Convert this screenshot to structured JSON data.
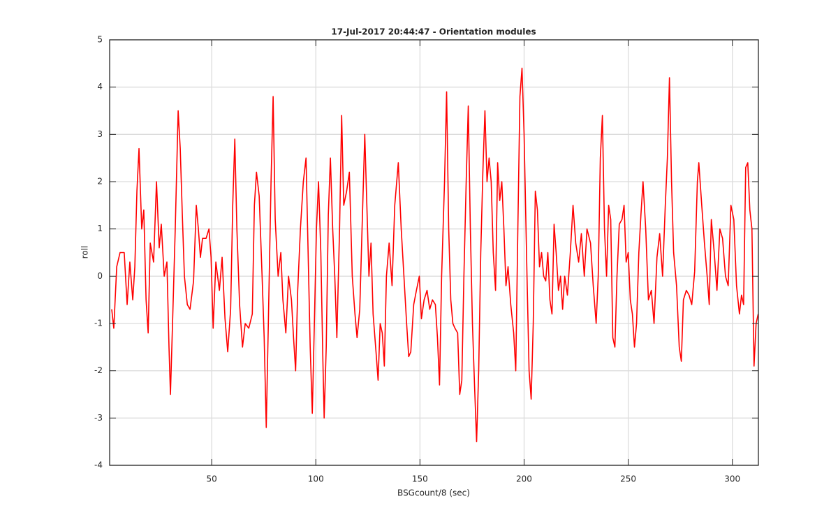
{
  "chart_data": {
    "type": "line",
    "title": "17-Jul-2017 20:44:47 - Orientation modules",
    "x_label": "BSGcount/8 (sec)",
    "y_label": "roll",
    "color": "#ff0000",
    "grid": true,
    "xlim": [
      1,
      312.5
    ],
    "ylim": [
      -4,
      5
    ],
    "xticks": [
      50,
      100,
      150,
      200,
      250,
      300
    ],
    "yticks": [
      -4,
      -3,
      -2,
      -1,
      0,
      1,
      2,
      3,
      4,
      5
    ],
    "x": [
      2.0,
      3.0,
      4.4,
      6.0,
      8.0,
      9.4,
      10.7,
      12.1,
      13.1,
      14.1,
      15.1,
      16.4,
      17.4,
      18.5,
      19.5,
      20.5,
      22.1,
      23.5,
      24.8,
      25.8,
      27.2,
      28.5,
      29.5,
      30.2,
      31.2,
      32.5,
      33.9,
      34.9,
      35.9,
      36.9,
      38.3,
      39.6,
      41.3,
      42.6,
      43.6,
      44.6,
      45.6,
      47.3,
      48.7,
      49.7,
      50.7,
      52.0,
      53.7,
      55.0,
      56.4,
      57.7,
      59.1,
      60.1,
      61.1,
      62.1,
      63.4,
      64.8,
      66.1,
      67.8,
      69.5,
      70.5,
      71.5,
      72.8,
      74.2,
      75.2,
      76.2,
      77.2,
      78.5,
      79.5,
      80.5,
      81.9,
      83.2,
      84.2,
      85.6,
      86.9,
      88.3,
      89.3,
      90.3,
      91.3,
      92.6,
      94.0,
      95.3,
      96.3,
      97.3,
      98.3,
      99.3,
      100.3,
      101.3,
      102.4,
      103.4,
      104.0,
      105.0,
      106.0,
      107.0,
      108.1,
      109.1,
      110.1,
      111.4,
      112.4,
      113.4,
      114.8,
      116.1,
      117.5,
      118.8,
      119.8,
      121.1,
      122.2,
      123.5,
      124.5,
      125.5,
      126.5,
      127.5,
      128.9,
      129.9,
      130.9,
      131.9,
      132.9,
      133.9,
      135.2,
      136.6,
      137.9,
      139.6,
      141.0,
      142.3,
      143.6,
      144.6,
      145.6,
      147.0,
      148.3,
      149.7,
      150.7,
      152.0,
      153.4,
      154.7,
      156.0,
      157.4,
      158.4,
      159.4,
      160.4,
      161.8,
      162.8,
      163.8,
      164.8,
      165.8,
      166.8,
      168.1,
      169.1,
      170.1,
      171.1,
      172.2,
      173.2,
      174.2,
      175.2,
      176.2,
      177.2,
      178.2,
      179.2,
      180.2,
      181.2,
      182.2,
      183.2,
      184.2,
      185.2,
      186.3,
      187.3,
      188.3,
      189.3,
      190.3,
      191.3,
      192.3,
      193.6,
      195.0,
      196.0,
      197.0,
      198.0,
      199.0,
      200.0,
      201.4,
      202.4,
      203.4,
      204.4,
      205.4,
      206.4,
      207.4,
      208.4,
      209.4,
      210.4,
      211.4,
      212.4,
      213.4,
      214.4,
      215.4,
      216.5,
      217.5,
      218.5,
      219.5,
      220.8,
      222.2,
      223.5,
      224.8,
      226.2,
      227.5,
      228.9,
      230.2,
      231.9,
      233.2,
      234.6,
      235.6,
      236.6,
      237.6,
      238.6,
      239.6,
      240.6,
      241.6,
      242.6,
      243.6,
      244.6,
      245.7,
      247.0,
      248.0,
      249.0,
      250.0,
      251.0,
      252.0,
      253.0,
      254.0,
      255.1,
      256.1,
      257.1,
      258.4,
      259.7,
      261.1,
      262.4,
      263.8,
      265.1,
      266.5,
      267.8,
      268.8,
      269.8,
      270.8,
      271.8,
      273.2,
      274.5,
      275.5,
      276.5,
      277.9,
      279.2,
      280.5,
      281.9,
      283.2,
      283.9,
      285.3,
      286.6,
      287.9,
      288.9,
      289.9,
      291.3,
      292.6,
      294.0,
      295.3,
      296.7,
      298.0,
      299.3,
      300.7,
      302.0,
      303.4,
      304.4,
      305.4,
      306.4,
      307.4,
      308.4,
      309.4,
      310.4,
      311.4,
      312.4
    ],
    "values": [
      -0.7,
      -1.1,
      0.2,
      0.5,
      0.5,
      -0.6,
      0.3,
      -0.5,
      0.2,
      1.8,
      2.7,
      1.0,
      1.4,
      -0.5,
      -1.2,
      0.7,
      0.3,
      2.0,
      0.6,
      1.1,
      0,
      0.3,
      -1.5,
      -2.5,
      -1.0,
      1.0,
      3.5,
      2.7,
      1.3,
      0,
      -0.6,
      -0.7,
      -0.1,
      1.5,
      1.0,
      0.4,
      0.8,
      0.8,
      1.0,
      0.4,
      -1.1,
      0.3,
      -0.3,
      0.4,
      -0.9,
      -1.6,
      -0.7,
      1.5,
      2.9,
      1.0,
      -0.6,
      -1.5,
      -1.0,
      -1.1,
      -0.8,
      1.5,
      2.2,
      1.7,
      0.0,
      -1.3,
      -3.2,
      -1.0,
      2.0,
      3.8,
      1.2,
      0.0,
      0.5,
      -0.5,
      -1.2,
      0.0,
      -0.5,
      -1.3,
      -2.0,
      -0.3,
      1.0,
      2.0,
      2.5,
      0.5,
      -1.5,
      -2.9,
      -1.0,
      1.0,
      2.0,
      0.5,
      -1.8,
      -3.0,
      -1.5,
      1.3,
      2.5,
      1.0,
      0.0,
      -1.3,
      1.0,
      3.4,
      1.5,
      1.8,
      2.2,
      0.0,
      -0.8,
      -1.3,
      -0.7,
      1.0,
      3.0,
      1.5,
      0.0,
      0.7,
      -0.8,
      -1.6,
      -2.2,
      -1.0,
      -1.2,
      -1.9,
      0.0,
      0.7,
      -0.2,
      1.5,
      2.4,
      1.0,
      0.0,
      -1.0,
      -1.7,
      -1.6,
      -0.6,
      -0.3,
      0.0,
      -0.9,
      -0.5,
      -0.3,
      -0.7,
      -0.5,
      -0.6,
      -1.3,
      -2.3,
      0.0,
      2.0,
      3.9,
      1.0,
      -0.5,
      -1.0,
      -1.1,
      -1.2,
      -2.5,
      -2.2,
      0.0,
      2.0,
      3.6,
      1.0,
      -1.0,
      -2.3,
      -3.5,
      -2.0,
      0.5,
      2.2,
      3.5,
      2.0,
      2.5,
      2.0,
      0.5,
      -0.3,
      2.4,
      1.6,
      2.0,
      1.0,
      -0.2,
      0.2,
      -0.6,
      -1.2,
      -2.0,
      1.0,
      3.8,
      4.4,
      3.0,
      0.0,
      -2.0,
      -2.6,
      -1.0,
      1.8,
      1.4,
      0.2,
      0.5,
      0.0,
      -0.1,
      0.5,
      -0.5,
      -0.8,
      1.1,
      0.5,
      -0.3,
      0.0,
      -0.7,
      0.0,
      -0.4,
      0.5,
      1.5,
      0.7,
      0.3,
      0.9,
      0.0,
      1.0,
      0.7,
      -0.2,
      -1.0,
      0.0,
      2.5,
      3.4,
      1.0,
      0.0,
      1.5,
      1.2,
      -1.3,
      -1.5,
      0.0,
      1.1,
      1.2,
      1.5,
      0.3,
      0.5,
      -0.5,
      -0.8,
      -1.5,
      -1.0,
      0.5,
      1.3,
      2.0,
      1.0,
      -0.5,
      -0.3,
      -1.0,
      0.4,
      0.9,
      0.0,
      1.5,
      2.5,
      4.2,
      2.0,
      0.5,
      -0.2,
      -1.5,
      -1.8,
      -0.5,
      -0.3,
      -0.4,
      -0.6,
      0.1,
      2.0,
      2.4,
      1.5,
      0.7,
      0.0,
      -0.6,
      1.2,
      0.5,
      -0.3,
      1.0,
      0.8,
      0.0,
      -0.2,
      1.5,
      1.2,
      -0.2,
      -0.8,
      -0.4,
      -0.6,
      2.3,
      2.4,
      1.4,
      1.0,
      -1.9,
      -1.0,
      -0.8
    ]
  }
}
